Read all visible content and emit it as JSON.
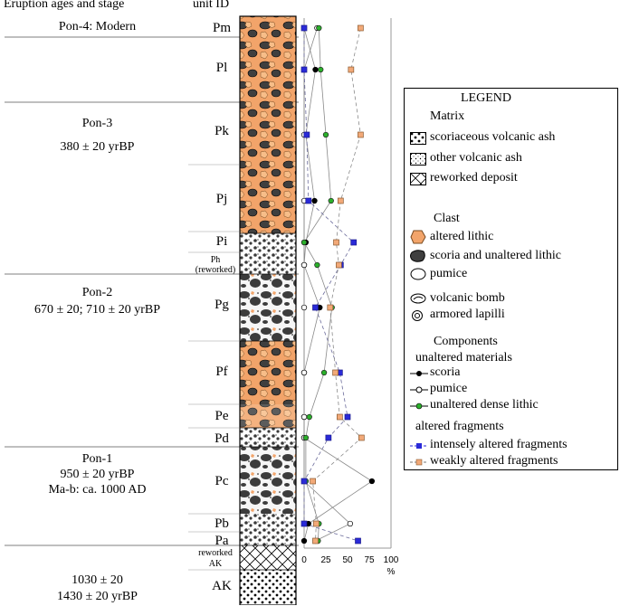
{
  "header": {
    "col1": "Eruption ages and stage",
    "col2": "unit ID"
  },
  "stages": [
    {
      "name": "Pon-4: Modern"
    },
    {
      "name": "Pon-3",
      "age": "380 ± 20 yrBP"
    },
    {
      "name": "Pon-2",
      "age": "670 ± 20; 710 ± 20 yrBP"
    },
    {
      "name": "Pon-1",
      "age": "950 ± 20 yrBP",
      "extra": "Ma-b: ca. 1000 AD"
    },
    {
      "age": "1030 ± 20",
      "extra": "1430 ± 20 yrBP"
    }
  ],
  "units": {
    "Pm": "Pm",
    "Pl": "Pl",
    "Pk": "Pk",
    "Pj": "Pj",
    "Pi": "Pi",
    "Ph": "Ph",
    "Ph_note": "(reworked)",
    "Pg": "Pg",
    "Pf": "Pf",
    "Pe": "Pe",
    "Pd": "Pd",
    "Pc": "Pc",
    "Pb": "Pb",
    "Pa": "Pa",
    "reworked1": "reworked",
    "reworked2": "AK",
    "AK": "AK"
  },
  "axis": {
    "ticks": [
      "0",
      "25",
      "50",
      "75",
      "100"
    ],
    "unit": "%"
  },
  "legend": {
    "title": "LEGEND",
    "matrix_title": "Matrix",
    "matrix": [
      "scoriaceous volcanic ash",
      "other volcanic ash",
      "reworked deposit"
    ],
    "clast_title": "Clast",
    "clast": [
      "altered lithic",
      "scoria and unaltered lithic",
      "pumice"
    ],
    "misc": [
      "volcanic bomb",
      "armored lapilli"
    ],
    "components_title": "Components",
    "unaltered_title": "unaltered materials",
    "unaltered": [
      "scoria",
      "pumice",
      "unaltered dense lithic"
    ],
    "altered_title": "altered fragments",
    "altered": [
      "intensely altered fragments",
      "weakly altered fragments"
    ]
  },
  "colors": {
    "altered": "#f4a460",
    "scoria": "#4a4a4a",
    "blue": "#2a2ad8",
    "orange": "#f2a978",
    "green": "#2bb02b"
  },
  "chart_data": {
    "type": "line",
    "xlabel": "%",
    "xlim": [
      0,
      100
    ],
    "units": [
      "Pm",
      "Pl",
      "Pk",
      "Pj",
      "Pi",
      "Ph",
      "Pg",
      "Pf",
      "Pe",
      "Pd",
      "Pc",
      "Pb",
      "Pa"
    ],
    "series": [
      {
        "name": "scoria",
        "values": [
          0,
          13,
          2,
          12,
          2,
          0,
          18,
          0,
          0,
          0,
          78,
          5,
          0
        ]
      },
      {
        "name": "pumice",
        "values": [
          15,
          0,
          0,
          0,
          0,
          0,
          0,
          0,
          0,
          0,
          0,
          53,
          13
        ]
      },
      {
        "name": "unaltered dense lithic",
        "values": [
          17,
          19,
          25,
          31,
          0,
          15,
          32,
          23,
          6,
          2,
          2,
          17,
          16
        ]
      },
      {
        "name": "intensely altered fragments",
        "values": [
          0,
          0,
          3,
          5,
          57,
          42,
          13,
          41,
          50,
          28,
          0,
          0,
          62
        ]
      },
      {
        "name": "weakly altered fragments",
        "values": [
          65,
          54,
          65,
          42,
          37,
          40,
          30,
          36,
          41,
          66,
          10,
          14,
          13
        ]
      }
    ]
  }
}
